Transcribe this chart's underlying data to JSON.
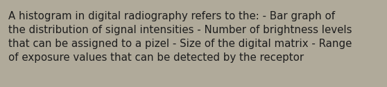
{
  "text_lines": [
    "A histogram in digital radiography refers to the: - Bar graph of",
    "the distribution of signal intensities - Number of brightness levels",
    "that can be assigned to a pizel - Size of the digital matrix - Range",
    "of exposure values that can be detected by the receptor"
  ],
  "background_color": "#b0aa9a",
  "text_color": "#1c1c1c",
  "font_size": 10.8,
  "font_family": "DejaVu Sans",
  "fig_width": 5.58,
  "fig_height": 1.26,
  "dpi": 100
}
